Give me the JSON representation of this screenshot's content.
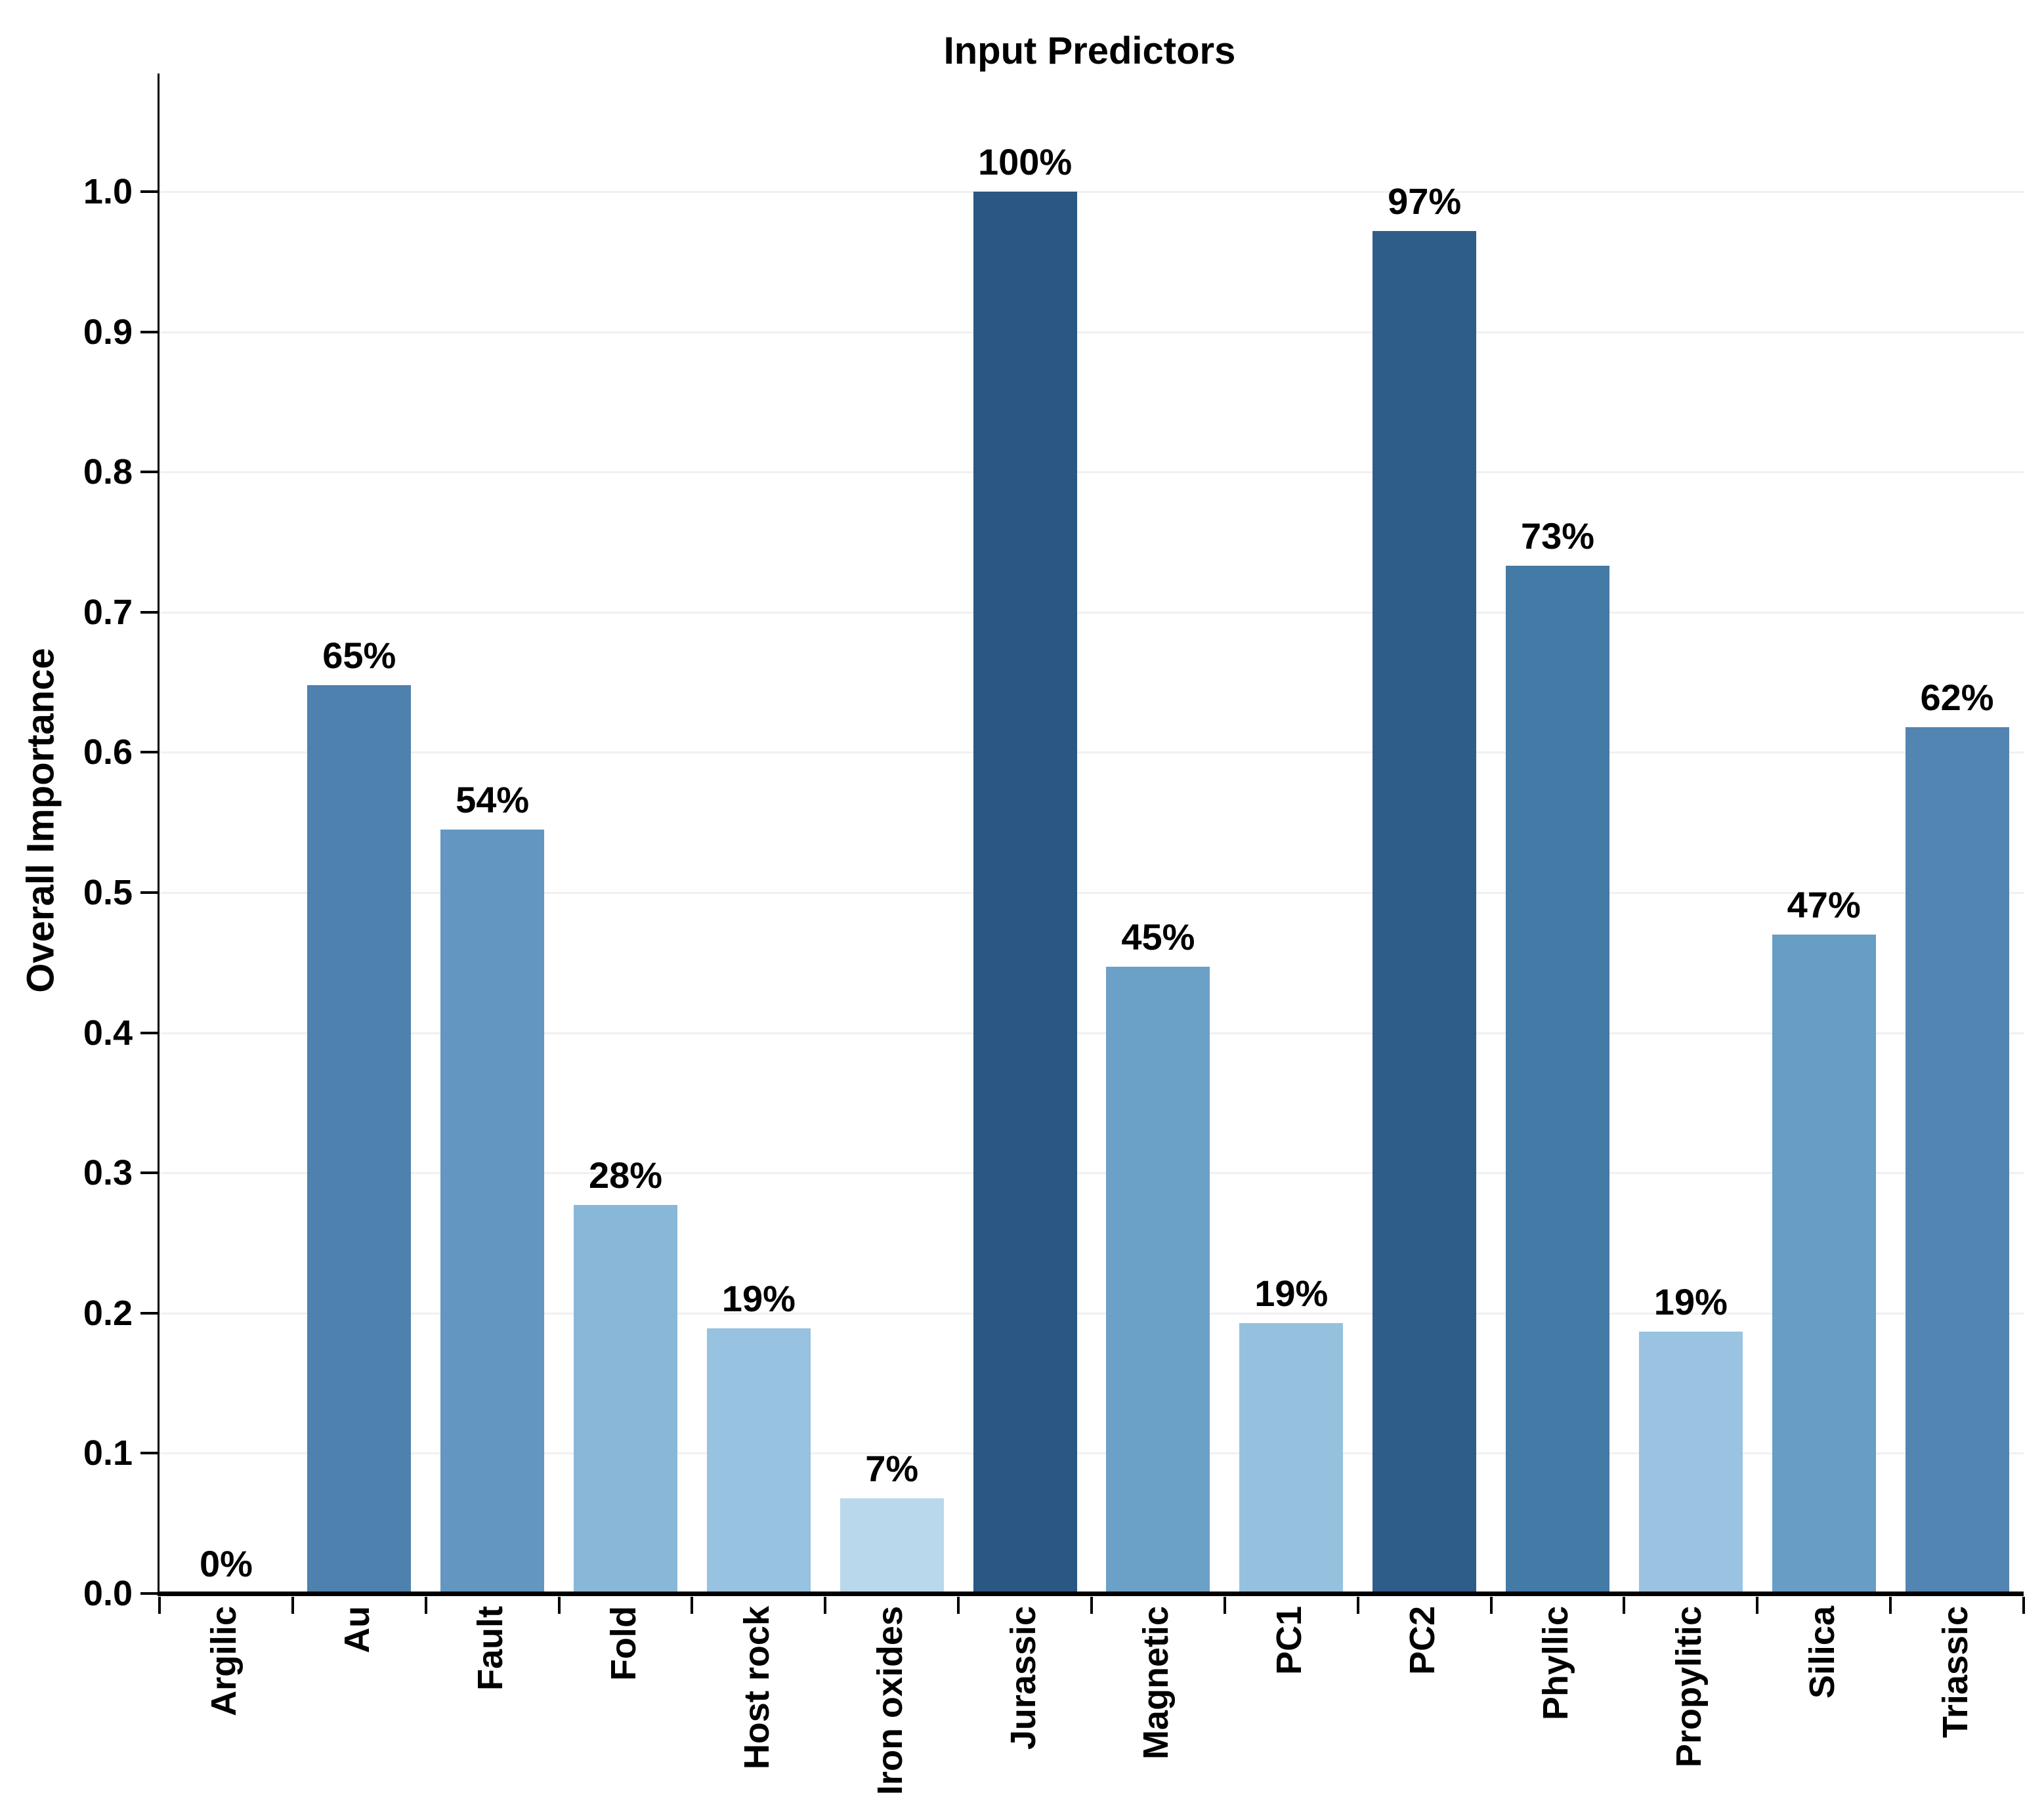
{
  "chart_data": {
    "type": "bar",
    "title": "Input Predictors",
    "xlabel": "",
    "ylabel": "Overall Importance",
    "categories": [
      "Argilic",
      "Au",
      "Fault",
      "Fold",
      "Host rock",
      "Iron oxides",
      "Jurassic",
      "Magnetic",
      "PC1",
      "PC2",
      "Phyllic",
      "Propylitic",
      "Silica",
      "Triassic"
    ],
    "values": [
      0.0,
      0.648,
      0.545,
      0.277,
      0.189,
      0.068,
      1.0,
      0.447,
      0.193,
      0.972,
      0.733,
      0.187,
      0.47,
      0.618
    ],
    "value_labels": [
      "0%",
      "65%",
      "54%",
      "28%",
      "19%",
      "7%",
      "100%",
      "45%",
      "19%",
      "97%",
      "73%",
      "19%",
      "47%",
      "62%"
    ],
    "bar_colors": [
      "#c6dbef",
      "#4e81ad",
      "#6396c0",
      "#89b7d8",
      "#97c2e0",
      "#b9d8ec",
      "#2a5783",
      "#6ba0c7",
      "#95c1df",
      "#2e5d89",
      "#447aa6",
      "#99c3e1",
      "#689dc5",
      "#5285b1"
    ],
    "ylim": [
      0.0,
      1.084
    ],
    "yticks": [
      0.0,
      0.1,
      0.2,
      0.3,
      0.4,
      0.5,
      0.6,
      0.7,
      0.8,
      0.9,
      1.0
    ],
    "ytick_labels": [
      "0.0",
      "0.1",
      "0.2",
      "0.3",
      "0.4",
      "0.5",
      "0.6",
      "0.7",
      "0.8",
      "0.9",
      "1.0"
    ],
    "grid": "horizontal",
    "legend_position": "none",
    "colors": {
      "background": "#ffffff",
      "grid": "#f0f0f0",
      "axis": "#000000",
      "text": "#000000"
    }
  }
}
